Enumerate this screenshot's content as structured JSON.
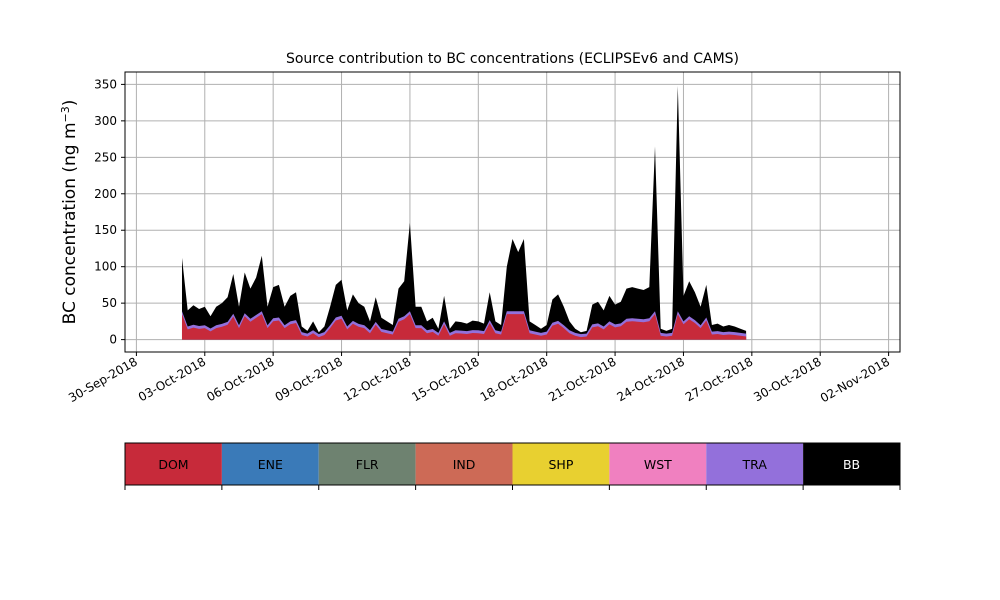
{
  "chart_data": {
    "type": "area",
    "title": "Source contribution to BC concentrations (ECLIPSEv6 and CAMS)",
    "xlabel": "",
    "ylabel": "BC concentration (ng m",
    "ylabel_superscript": "−3",
    "ylabel_suffix": ")",
    "ylim": [
      -17,
      367
    ],
    "yticks": [
      0,
      50,
      100,
      150,
      200,
      250,
      300,
      350
    ],
    "grid": true,
    "stacked": true,
    "x_start": "2018-10-02",
    "x_step_days": 0.25,
    "xlim": [
      "2018-09-29 12:00",
      "2018-11-02 12:00"
    ],
    "xticks": [
      "30-Sep-2018",
      "03-Oct-2018",
      "06-Oct-2018",
      "09-Oct-2018",
      "12-Oct-2018",
      "15-Oct-2018",
      "18-Oct-2018",
      "21-Oct-2018",
      "24-Oct-2018",
      "27-Oct-2018",
      "30-Oct-2018",
      "02-Nov-2018"
    ],
    "xtick_dates": [
      "2018-09-30",
      "2018-10-03",
      "2018-10-06",
      "2018-10-09",
      "2018-10-12",
      "2018-10-15",
      "2018-10-18",
      "2018-10-21",
      "2018-10-24",
      "2018-10-27",
      "2018-10-30",
      "2018-11-02"
    ],
    "total_profile": [
      [
        "2018-10-02",
        112
      ],
      [
        "2018-10-02 06:00",
        40
      ],
      [
        "2018-10-02 12:00",
        47
      ],
      [
        "2018-10-02 18:00",
        42
      ],
      [
        "2018-10-03",
        45
      ],
      [
        "2018-10-03 06:00",
        32
      ],
      [
        "2018-10-03 12:00",
        45
      ],
      [
        "2018-10-03 18:00",
        50
      ],
      [
        "2018-10-04",
        58
      ],
      [
        "2018-10-04 06:00",
        90
      ],
      [
        "2018-10-04 12:00",
        45
      ],
      [
        "2018-10-04 18:00",
        92
      ],
      [
        "2018-10-05",
        70
      ],
      [
        "2018-10-05 06:00",
        85
      ],
      [
        "2018-10-05 12:00",
        115
      ],
      [
        "2018-10-05 18:00",
        45
      ],
      [
        "2018-10-06",
        72
      ],
      [
        "2018-10-06 06:00",
        75
      ],
      [
        "2018-10-06 12:00",
        45
      ],
      [
        "2018-10-06 18:00",
        60
      ],
      [
        "2018-10-07",
        65
      ],
      [
        "2018-10-07 06:00",
        18
      ],
      [
        "2018-10-07 12:00",
        12
      ],
      [
        "2018-10-07 18:00",
        25
      ],
      [
        "2018-10-08",
        10
      ],
      [
        "2018-10-08 06:00",
        18
      ],
      [
        "2018-10-08 12:00",
        45
      ],
      [
        "2018-10-08 18:00",
        75
      ],
      [
        "2018-10-09",
        82
      ],
      [
        "2018-10-09 06:00",
        40
      ],
      [
        "2018-10-09 12:00",
        62
      ],
      [
        "2018-10-09 18:00",
        50
      ],
      [
        "2018-10-10",
        45
      ],
      [
        "2018-10-10 06:00",
        25
      ],
      [
        "2018-10-10 12:00",
        58
      ],
      [
        "2018-10-10 18:00",
        30
      ],
      [
        "2018-10-11",
        25
      ],
      [
        "2018-10-11 06:00",
        20
      ],
      [
        "2018-10-11 12:00",
        70
      ],
      [
        "2018-10-11 18:00",
        80
      ],
      [
        "2018-10-12",
        160
      ],
      [
        "2018-10-12 06:00",
        45
      ],
      [
        "2018-10-12 12:00",
        45
      ],
      [
        "2018-10-12 18:00",
        25
      ],
      [
        "2018-10-13",
        30
      ],
      [
        "2018-10-13 06:00",
        15
      ],
      [
        "2018-10-13 12:00",
        60
      ],
      [
        "2018-10-13 18:00",
        15
      ],
      [
        "2018-10-14",
        25
      ],
      [
        "2018-10-14 06:00",
        24
      ],
      [
        "2018-10-14 12:00",
        22
      ],
      [
        "2018-10-14 18:00",
        26
      ],
      [
        "2018-10-15",
        25
      ],
      [
        "2018-10-15 06:00",
        22
      ],
      [
        "2018-10-15 12:00",
        65
      ],
      [
        "2018-10-15 18:00",
        25
      ],
      [
        "2018-10-16",
        20
      ],
      [
        "2018-10-16 06:00",
        100
      ],
      [
        "2018-10-16 12:00",
        138
      ],
      [
        "2018-10-16 18:00",
        120
      ],
      [
        "2018-10-17",
        138
      ],
      [
        "2018-10-17 06:00",
        25
      ],
      [
        "2018-10-17 12:00",
        20
      ],
      [
        "2018-10-17 18:00",
        15
      ],
      [
        "2018-10-18",
        20
      ],
      [
        "2018-10-18 06:00",
        55
      ],
      [
        "2018-10-18 12:00",
        62
      ],
      [
        "2018-10-18 18:00",
        45
      ],
      [
        "2018-10-19",
        25
      ],
      [
        "2018-10-19 06:00",
        15
      ],
      [
        "2018-10-19 12:00",
        10
      ],
      [
        "2018-10-19 18:00",
        12
      ],
      [
        "2018-10-20",
        48
      ],
      [
        "2018-10-20 06:00",
        52
      ],
      [
        "2018-10-20 12:00",
        40
      ],
      [
        "2018-10-20 18:00",
        60
      ],
      [
        "2018-10-21",
        48
      ],
      [
        "2018-10-21 06:00",
        52
      ],
      [
        "2018-10-21 12:00",
        70
      ],
      [
        "2018-10-21 18:00",
        72
      ],
      [
        "2018-10-22",
        70
      ],
      [
        "2018-10-22 06:00",
        68
      ],
      [
        "2018-10-22 12:00",
        72
      ],
      [
        "2018-10-22 18:00",
        265
      ],
      [
        "2018-10-23",
        15
      ],
      [
        "2018-10-23 06:00",
        12
      ],
      [
        "2018-10-23 12:00",
        15
      ],
      [
        "2018-10-23 18:00",
        348
      ],
      [
        "2018-10-24",
        60
      ],
      [
        "2018-10-24 06:00",
        80
      ],
      [
        "2018-10-24 12:00",
        65
      ],
      [
        "2018-10-24 18:00",
        45
      ],
      [
        "2018-10-25",
        75
      ],
      [
        "2018-10-25 06:00",
        20
      ],
      [
        "2018-10-25 12:00",
        22
      ],
      [
        "2018-10-25 18:00",
        18
      ],
      [
        "2018-10-26",
        20
      ],
      [
        "2018-10-26 06:00",
        18
      ],
      [
        "2018-10-26 12:00",
        15
      ],
      [
        "2018-10-26 18:00",
        12
      ]
    ],
    "series": [
      {
        "name": "DOM",
        "color": "#c72a3a"
      },
      {
        "name": "ENE",
        "color": "#3a7ab8"
      },
      {
        "name": "FLR",
        "color": "#6e8270"
      },
      {
        "name": "IND",
        "color": "#cd6a56"
      },
      {
        "name": "SHP",
        "color": "#e8d030"
      },
      {
        "name": "WST",
        "color": "#f080c0"
      },
      {
        "name": "TRA",
        "color": "#9370db"
      },
      {
        "name": "BB",
        "color": "#000000"
      }
    ],
    "legend": {
      "placement": "bottom",
      "items": [
        "DOM",
        "ENE",
        "FLR",
        "IND",
        "SHP",
        "WST",
        "TRA",
        "BB"
      ]
    }
  }
}
